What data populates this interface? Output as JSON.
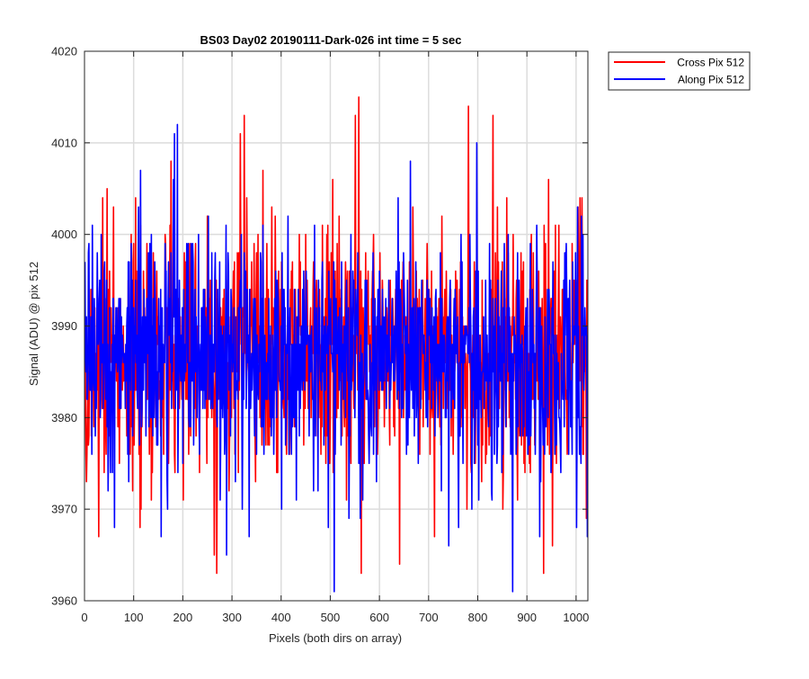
{
  "chart_data": {
    "type": "line",
    "title": "BS03 Day02 20190111-Dark-026 int time = 5 sec",
    "xlabel": "Pixels (both dirs on array)",
    "ylabel": "Signal (ADU) @ pix 512",
    "xlim": [
      0,
      1024
    ],
    "ylim": [
      3960,
      4020
    ],
    "xticks": [
      0,
      100,
      200,
      300,
      400,
      500,
      600,
      700,
      800,
      900,
      1000
    ],
    "yticks": [
      3960,
      3970,
      3980,
      3990,
      4000,
      4010,
      4020
    ],
    "grid": true,
    "legend_position": "outside-top-right",
    "series": [
      {
        "name": "Cross Pix 512",
        "color": "#ff0000",
        "mean": 3987,
        "noise_std": 6.5,
        "n_points": 1024,
        "peaks": [
          {
            "x": 3,
            "y": 3973
          },
          {
            "x": 28,
            "y": 3967
          },
          {
            "x": 45,
            "y": 4005
          },
          {
            "x": 58,
            "y": 4003
          },
          {
            "x": 97,
            "y": 3972
          },
          {
            "x": 103,
            "y": 4004
          },
          {
            "x": 112,
            "y": 3968
          },
          {
            "x": 175,
            "y": 4008
          },
          {
            "x": 263,
            "y": 3965
          },
          {
            "x": 268,
            "y": 3963
          },
          {
            "x": 316,
            "y": 4011
          },
          {
            "x": 324,
            "y": 4013
          },
          {
            "x": 362,
            "y": 4007
          },
          {
            "x": 483,
            "y": 4001
          },
          {
            "x": 504,
            "y": 4006
          },
          {
            "x": 550,
            "y": 4013
          },
          {
            "x": 557,
            "y": 4015
          },
          {
            "x": 562,
            "y": 3963
          },
          {
            "x": 640,
            "y": 3964
          },
          {
            "x": 711,
            "y": 3967
          },
          {
            "x": 777,
            "y": 3970
          },
          {
            "x": 780,
            "y": 4014
          },
          {
            "x": 830,
            "y": 4013
          },
          {
            "x": 850,
            "y": 3970
          },
          {
            "x": 880,
            "y": 3971
          },
          {
            "x": 933,
            "y": 3963
          },
          {
            "x": 943,
            "y": 4006
          },
          {
            "x": 951,
            "y": 3966
          },
          {
            "x": 1020,
            "y": 3969
          }
        ]
      },
      {
        "name": "Along Pix 512",
        "color": "#0000ff",
        "mean": 3987,
        "noise_std": 6.2,
        "n_points": 1024,
        "peaks": [
          {
            "x": 15,
            "y": 4001
          },
          {
            "x": 60,
            "y": 3968
          },
          {
            "x": 113,
            "y": 4007
          },
          {
            "x": 155,
            "y": 3967
          },
          {
            "x": 180,
            "y": 4006
          },
          {
            "x": 182,
            "y": 4011
          },
          {
            "x": 188,
            "y": 4012
          },
          {
            "x": 288,
            "y": 3965
          },
          {
            "x": 334,
            "y": 3967
          },
          {
            "x": 400,
            "y": 3970
          },
          {
            "x": 495,
            "y": 3968
          },
          {
            "x": 507,
            "y": 3961
          },
          {
            "x": 537,
            "y": 3969
          },
          {
            "x": 560,
            "y": 3969
          },
          {
            "x": 662,
            "y": 4008
          },
          {
            "x": 740,
            "y": 3966
          },
          {
            "x": 760,
            "y": 3968
          },
          {
            "x": 797,
            "y": 4010
          },
          {
            "x": 801,
            "y": 3971
          },
          {
            "x": 870,
            "y": 3961
          },
          {
            "x": 925,
            "y": 3967
          },
          {
            "x": 1000,
            "y": 3968
          },
          {
            "x": 1013,
            "y": 4000
          },
          {
            "x": 1022,
            "y": 3967
          }
        ]
      }
    ]
  }
}
